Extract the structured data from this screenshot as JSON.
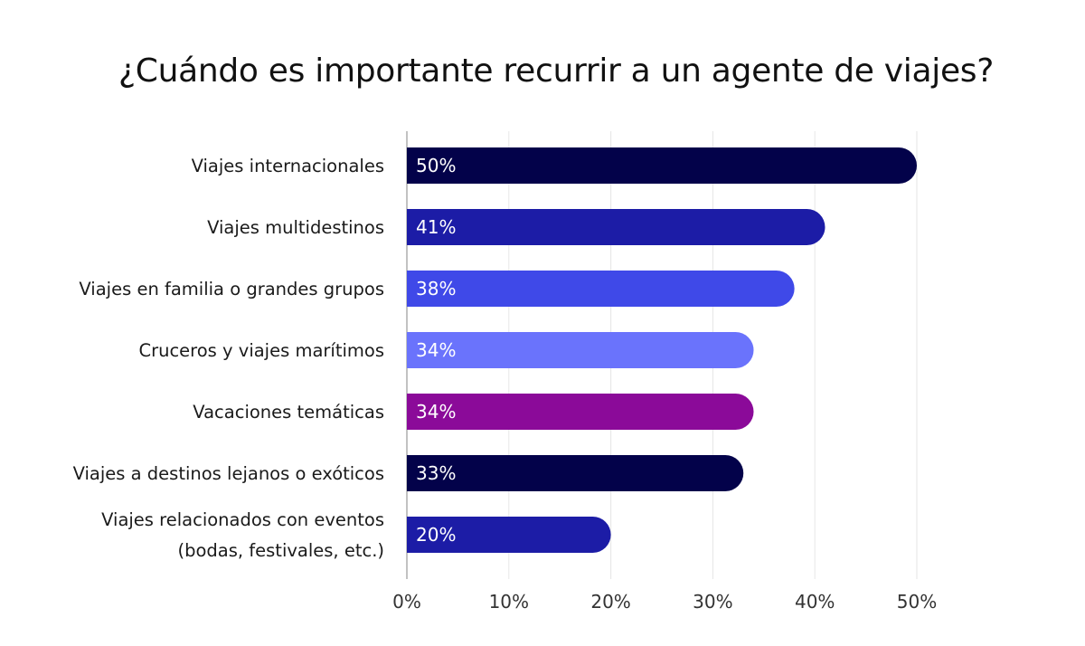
{
  "chart_data": {
    "type": "bar",
    "orientation": "horizontal",
    "title": "¿Cuándo es importante recurrir a un agente de viajes?",
    "categories": [
      [
        "Viajes internacionales"
      ],
      [
        "Viajes multidestinos"
      ],
      [
        "Viajes en familia o grandes grupos"
      ],
      [
        "Cruceros y viajes marítimos"
      ],
      [
        "Vacaciones temáticas"
      ],
      [
        "Viajes a destinos lejanos o exóticos"
      ],
      [
        "Viajes relacionados con eventos",
        "(bodas, festivales, etc.)"
      ]
    ],
    "values": [
      50,
      41,
      38,
      34,
      34,
      33,
      20
    ],
    "value_labels": [
      "50%",
      "41%",
      "38%",
      "34%",
      "34%",
      "33%",
      "20%"
    ],
    "colors": [
      "#03024a",
      "#1c1ca6",
      "#3f49e8",
      "#6a73fc",
      "#8b0a99",
      "#03024a",
      "#1c1ca6"
    ],
    "xlim": [
      0,
      50
    ],
    "xticks": [
      0,
      10,
      20,
      30,
      40,
      50
    ],
    "xtick_labels": [
      "0%",
      "10%",
      "20%",
      "30%",
      "40%",
      "50%"
    ],
    "xlabel": "",
    "ylabel": "",
    "grid": true,
    "legend": "none"
  }
}
